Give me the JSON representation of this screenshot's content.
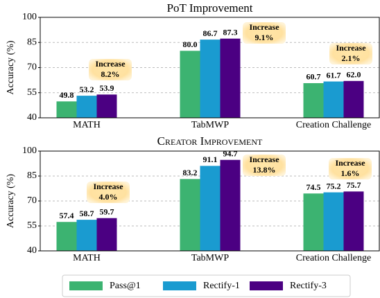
{
  "chart_data": [
    {
      "type": "bar",
      "title": "PoT Improvement",
      "ylabel": "Accuracy (%)",
      "categories": [
        "MATH",
        "TabMWP",
        "Creation Challenge"
      ],
      "series": [
        {
          "name": "Pass@1",
          "color": "#3cb371",
          "values": [
            49.8,
            80.0,
            60.7
          ],
          "value_labels": [
            "49.8",
            "80.0",
            "60.7"
          ]
        },
        {
          "name": "Rectify-1",
          "color": "#1a9bd0",
          "values": [
            53.2,
            86.7,
            61.7
          ],
          "value_labels": [
            "53.2",
            "86.7",
            "61.7"
          ]
        },
        {
          "name": "Rectify-3",
          "color": "#4b0082",
          "values": [
            53.9,
            87.3,
            62.0
          ],
          "value_labels": [
            "53.9",
            "87.3",
            "62.0"
          ]
        }
      ],
      "annotations": [
        [
          "Increase",
          "8.2%"
        ],
        [
          "Increase",
          "9.1%"
        ],
        [
          "Increase",
          "2.1%"
        ]
      ],
      "ylim": [
        40,
        100
      ],
      "yticks": [
        40,
        55,
        70,
        85,
        100
      ],
      "grid": true
    },
    {
      "type": "bar",
      "title": "Creator Improvement",
      "ylabel": "Accuracy (%)",
      "categories": [
        "MATH",
        "TabMWP",
        "Creation Challenge"
      ],
      "series": [
        {
          "name": "Pass@1",
          "color": "#3cb371",
          "values": [
            57.4,
            83.2,
            74.5
          ],
          "value_labels": [
            "57.4",
            "83.2",
            "74.5"
          ]
        },
        {
          "name": "Rectify-1",
          "color": "#1a9bd0",
          "values": [
            58.7,
            91.1,
            75.2
          ],
          "value_labels": [
            "58.7",
            "91.1",
            "75.2"
          ]
        },
        {
          "name": "Rectify-3",
          "color": "#4b0082",
          "values": [
            59.7,
            94.7,
            75.7
          ],
          "value_labels": [
            "59.7",
            "94.7",
            "75.7"
          ]
        }
      ],
      "annotations": [
        [
          "Increase",
          "4.0%"
        ],
        [
          "Increase",
          "13.8%"
        ],
        [
          "Increase",
          "1.6%"
        ]
      ],
      "ylim": [
        40,
        100
      ],
      "yticks": [
        40,
        55,
        70,
        85,
        100
      ],
      "grid": true
    }
  ]
}
